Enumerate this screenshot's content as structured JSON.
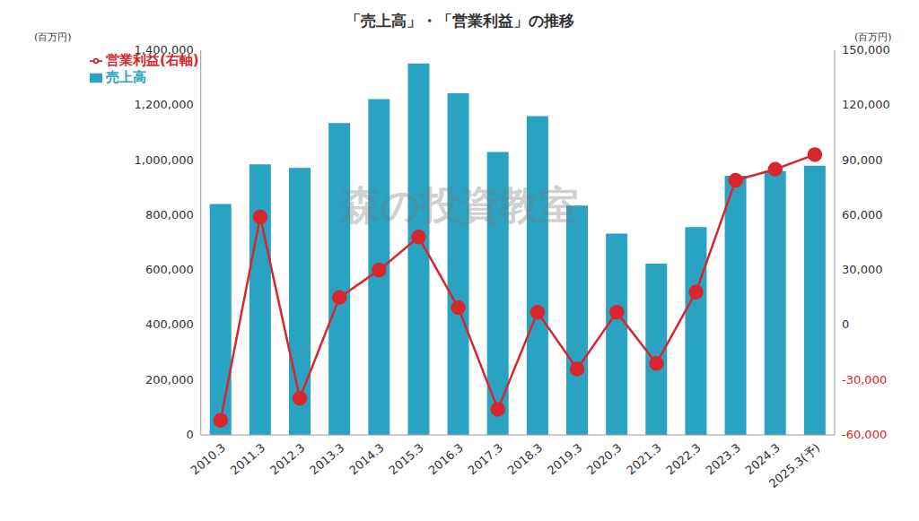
{
  "chart_data": {
    "type": "bar",
    "title": "「売上高」・「営業利益」の推移",
    "y_label": "(百万円)",
    "y2_label": "(百万円)",
    "annotations": [
      "森の投資教室"
    ],
    "categories": [
      "2010.3",
      "2011.3",
      "2012.3",
      "2013.3",
      "2014.3",
      "2015.3",
      "2016.3",
      "2017.3",
      "2018.3",
      "2019.3",
      "2020.3",
      "2021.3",
      "2022.3",
      "2023.3",
      "2024.3",
      "2025.3(予)"
    ],
    "series": [
      {
        "name": "売上高",
        "type": "bar",
        "color": "#2aa3c2",
        "values": [
          840000,
          985000,
          972000,
          1135000,
          1222000,
          1352000,
          1243000,
          1030000,
          1160000,
          835000,
          733000,
          623000,
          756000,
          943000,
          960000,
          980000
        ]
      },
      {
        "name": "営業利益(右軸)",
        "type": "line",
        "axis": "y2",
        "color": "#d9262e",
        "marker": "circle",
        "line_style": "solid",
        "values": [
          -52000,
          59000,
          -40000,
          15000,
          30000,
          48000,
          9500,
          -46000,
          7000,
          -24000,
          7000,
          -21000,
          18000,
          79000,
          85000,
          93000
        ]
      }
    ],
    "ylim": [
      0,
      1400000
    ],
    "yticks": [
      0,
      {
        "value": 200000,
        "label": "200,000"
      },
      {
        "value": 400000,
        "label": "400,000"
      },
      {
        "value": 600000,
        "label": "600,000"
      },
      {
        "value": 800000,
        "label": "800,000"
      },
      {
        "value": 1000000,
        "label": "1,000,000"
      },
      {
        "value": 1200000,
        "label": "1,200,000"
      },
      {
        "value": 1400000,
        "label": "1,400,000"
      }
    ],
    "y2lim": [
      -60000,
      150000
    ],
    "y2ticks": [
      {
        "value": -60000,
        "label": "-60,000"
      },
      {
        "value": -30000,
        "label": "-30,000"
      },
      0,
      {
        "value": 30000,
        "label": "30,000"
      },
      {
        "value": 60000,
        "label": "60,000"
      },
      {
        "value": 90000,
        "label": "90,000"
      },
      {
        "value": 120000,
        "label": "120,000"
      },
      {
        "value": 150000,
        "label": "150,000"
      }
    ],
    "grid": false,
    "legend": "upper left",
    "data_labels": false
  }
}
